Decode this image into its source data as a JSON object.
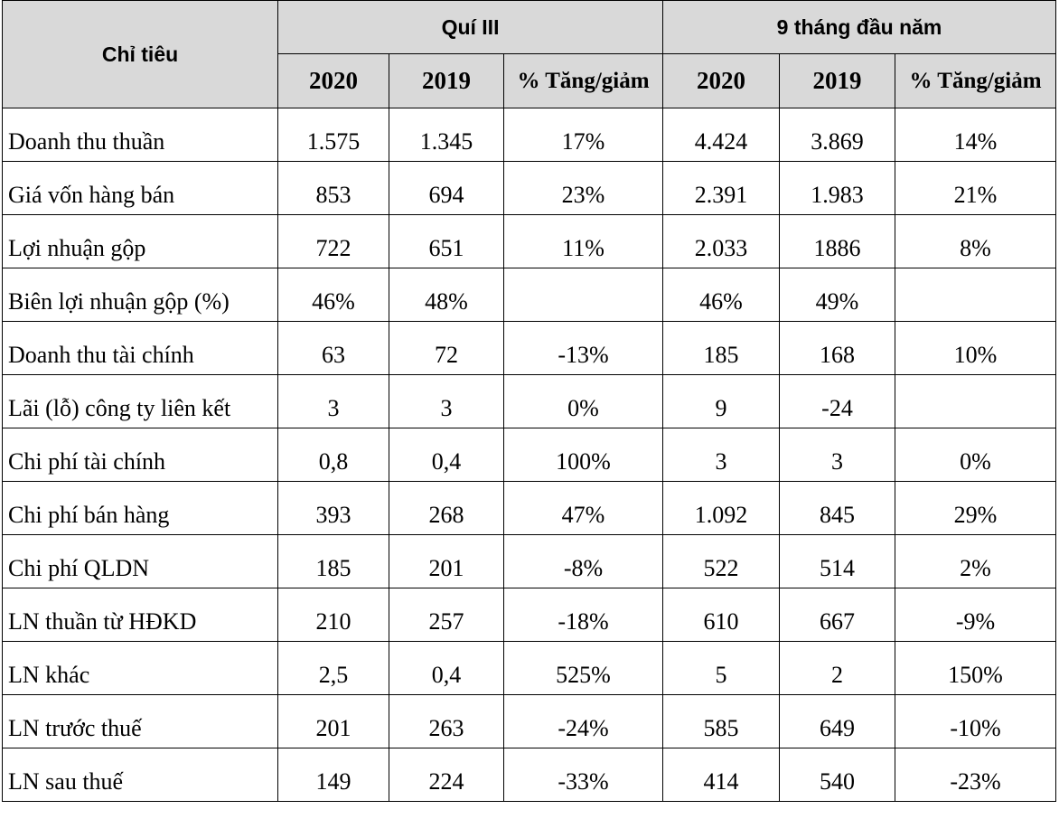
{
  "table": {
    "header": {
      "label": "Chỉ tiêu",
      "groups": [
        "Quí III",
        "9 tháng đầu năm"
      ],
      "columns": [
        "2020",
        "2019",
        "% Tăng/giảm",
        "2020",
        "2019",
        "% Tăng/giảm"
      ]
    },
    "rows": [
      [
        "Doanh thu thuần",
        "1.575",
        "1.345",
        "17%",
        "4.424",
        "3.869",
        "14%"
      ],
      [
        "Giá vốn hàng bán",
        "853",
        "694",
        "23%",
        "2.391",
        "1.983",
        "21%"
      ],
      [
        "Lợi nhuận gộp",
        "722",
        "651",
        "11%",
        "2.033",
        "1886",
        "8%"
      ],
      [
        "Biên lợi nhuận gộp (%)",
        "46%",
        "48%",
        null,
        "46%",
        "49%",
        null
      ],
      [
        "Doanh thu tài chính",
        "63",
        "72",
        "-13%",
        "185",
        "168",
        "10%"
      ],
      [
        "Lãi (lỗ) công ty liên kết",
        "3",
        "3",
        "0%",
        "9",
        "-24",
        null
      ],
      [
        "Chi phí tài chính",
        "0,8",
        "0,4",
        "100%",
        "3",
        "3",
        "0%"
      ],
      [
        "Chi phí bán hàng",
        "393",
        "268",
        "47%",
        "1.092",
        "845",
        "29%"
      ],
      [
        "Chi phí QLDN",
        "185",
        "201",
        "-8%",
        "522",
        "514",
        "2%"
      ],
      [
        "LN thuần từ HĐKD",
        "210",
        "257",
        "-18%",
        "610",
        "667",
        "-9%"
      ],
      [
        "LN khác",
        "2,5",
        "0,4",
        "525%",
        "5",
        "2",
        "150%"
      ],
      [
        "LN trước thuế",
        "201",
        "263",
        "-24%",
        "585",
        "649",
        "-10%"
      ],
      [
        "LN sau thuế",
        "149",
        "224",
        "-33%",
        "414",
        "540",
        "-23%"
      ]
    ]
  }
}
